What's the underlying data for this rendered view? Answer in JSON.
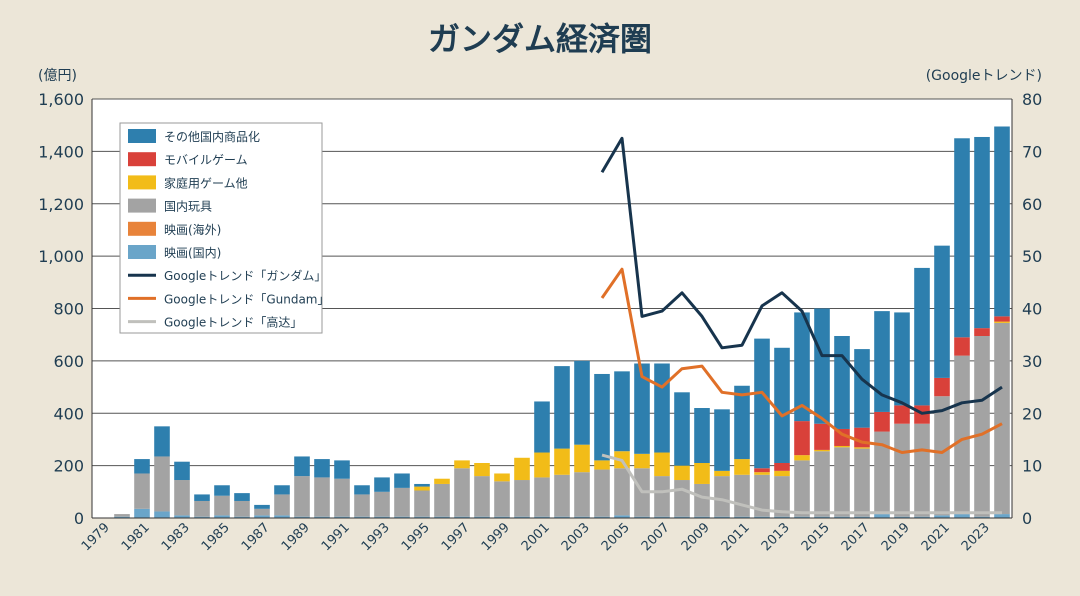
{
  "chart_data": {
    "type": "bar",
    "title": "ガンダム経済圏",
    "y_left_unit": "(億円)",
    "y_right_unit": "(Googleトレンド)",
    "ylim_left": [
      0,
      1600
    ],
    "ylim_right": [
      0,
      80
    ],
    "yticks_left": [
      "0",
      "200",
      "400",
      "600",
      "800",
      "1,000",
      "1,200",
      "1,400",
      "1,600"
    ],
    "yticks_right": [
      "0",
      "10",
      "20",
      "30",
      "40",
      "50",
      "60",
      "70",
      "80"
    ],
    "x_tick_labels": [
      "1979",
      "1981",
      "1983",
      "1985",
      "1987",
      "1989",
      "1991",
      "1993",
      "1995",
      "1997",
      "1999",
      "2001",
      "2003",
      "2005",
      "2007",
      "2009",
      "2011",
      "2013",
      "2015",
      "2017",
      "2019",
      "2021",
      "2023"
    ],
    "years": [
      1979,
      1980,
      1981,
      1982,
      1983,
      1984,
      1985,
      1986,
      1987,
      1988,
      1989,
      1990,
      1991,
      1992,
      1993,
      1994,
      1995,
      1996,
      1997,
      1998,
      1999,
      2000,
      2001,
      2002,
      2003,
      2004,
      2005,
      2006,
      2007,
      2008,
      2009,
      2010,
      2011,
      2012,
      2013,
      2014,
      2015,
      2016,
      2017,
      2018,
      2019,
      2020,
      2021,
      2022,
      2023,
      2024
    ],
    "grid": true,
    "legend_position": "top-left",
    "series": [
      {
        "name": "映画(国内)",
        "color": "#6aa5c9",
        "values": [
          0,
          5,
          35,
          25,
          10,
          5,
          10,
          5,
          10,
          10,
          5,
          5,
          5,
          5,
          5,
          5,
          5,
          5,
          5,
          5,
          5,
          5,
          5,
          5,
          5,
          5,
          10,
          5,
          5,
          5,
          5,
          5,
          5,
          5,
          5,
          5,
          5,
          5,
          5,
          15,
          5,
          5,
          10,
          15,
          5,
          15
        ]
      },
      {
        "name": "映画(海外)",
        "color": "#e8833a",
        "values": [
          0,
          0,
          0,
          0,
          0,
          0,
          0,
          0,
          0,
          0,
          0,
          0,
          0,
          0,
          0,
          0,
          0,
          0,
          0,
          0,
          0,
          0,
          0,
          0,
          0,
          0,
          0,
          0,
          0,
          0,
          0,
          0,
          0,
          0,
          0,
          0,
          0,
          0,
          0,
          0,
          0,
          0,
          0,
          0,
          0,
          0
        ]
      },
      {
        "name": "国内玩具",
        "color": "#a3a3a3",
        "values": [
          0,
          10,
          135,
          210,
          135,
          60,
          75,
          60,
          25,
          80,
          155,
          150,
          145,
          85,
          95,
          110,
          100,
          125,
          185,
          155,
          135,
          140,
          150,
          160,
          170,
          180,
          180,
          185,
          155,
          140,
          125,
          155,
          160,
          160,
          155,
          215,
          250,
          265,
          260,
          315,
          355,
          355,
          455,
          605,
          690,
          730
        ]
      },
      {
        "name": "家庭用ゲーム他",
        "color": "#f2bc18",
        "values": [
          0,
          0,
          0,
          0,
          0,
          0,
          0,
          0,
          0,
          0,
          0,
          0,
          0,
          0,
          0,
          0,
          15,
          20,
          30,
          50,
          30,
          85,
          95,
          100,
          105,
          35,
          65,
          55,
          90,
          55,
          80,
          20,
          60,
          10,
          20,
          20,
          5,
          5,
          5,
          0,
          0,
          0,
          0,
          0,
          0,
          5
        ]
      },
      {
        "name": "モバイルゲーム",
        "color": "#d9413a",
        "values": [
          0,
          0,
          0,
          0,
          0,
          0,
          0,
          0,
          0,
          0,
          0,
          0,
          0,
          0,
          0,
          0,
          0,
          0,
          0,
          0,
          0,
          0,
          0,
          0,
          0,
          0,
          0,
          0,
          0,
          0,
          0,
          0,
          0,
          15,
          30,
          130,
          100,
          65,
          75,
          75,
          70,
          70,
          70,
          70,
          30,
          20
        ]
      },
      {
        "name": "その他国内商品化",
        "color": "#2e7fae",
        "values": [
          0,
          0,
          55,
          115,
          70,
          25,
          40,
          30,
          15,
          35,
          75,
          70,
          70,
          35,
          55,
          55,
          10,
          0,
          0,
          0,
          0,
          0,
          195,
          315,
          320,
          330,
          305,
          345,
          340,
          280,
          210,
          235,
          280,
          495,
          440,
          415,
          440,
          355,
          300,
          385,
          355,
          525,
          505,
          760,
          730,
          725
        ]
      }
    ],
    "trend_years": [
      2004,
      2005,
      2006,
      2007,
      2008,
      2009,
      2010,
      2011,
      2012,
      2013,
      2014,
      2015,
      2016,
      2017,
      2018,
      2019,
      2020,
      2021,
      2022,
      2023,
      2024
    ],
    "lines": [
      {
        "name": "Googleトレンド「ガンダム」",
        "color": "#17344d",
        "values": [
          66,
          72.5,
          38.5,
          39.5,
          43,
          38.5,
          32.5,
          33,
          40.5,
          43,
          39.5,
          31,
          31,
          26.5,
          23.5,
          22,
          20,
          20.5,
          22,
          22.5,
          25
        ]
      },
      {
        "name": "Googleトレンド「Gundam」",
        "color": "#e07028",
        "values": [
          42,
          47.5,
          27,
          25,
          28.5,
          29,
          24,
          23.5,
          24,
          19.5,
          21.5,
          19,
          16,
          14.5,
          14,
          12.5,
          13,
          12.5,
          15,
          16,
          18
        ]
      },
      {
        "name": "Googleトレンド「高达」",
        "color": "#c0c0bc",
        "values": [
          12,
          11,
          5,
          5,
          5.5,
          4,
          3.5,
          2.5,
          1.5,
          1.2,
          1,
          1,
          1,
          1,
          1,
          1,
          1,
          1,
          1,
          1,
          1
        ]
      }
    ],
    "legend": [
      "その他国内商品化",
      "モバイルゲーム",
      "家庭用ゲーム他",
      "国内玩具",
      "映画(海外)",
      "映画(国内)",
      "Googleトレンド「ガンダム」",
      "Googleトレンド「Gundam」",
      "Googleトレンド「高达」"
    ]
  }
}
